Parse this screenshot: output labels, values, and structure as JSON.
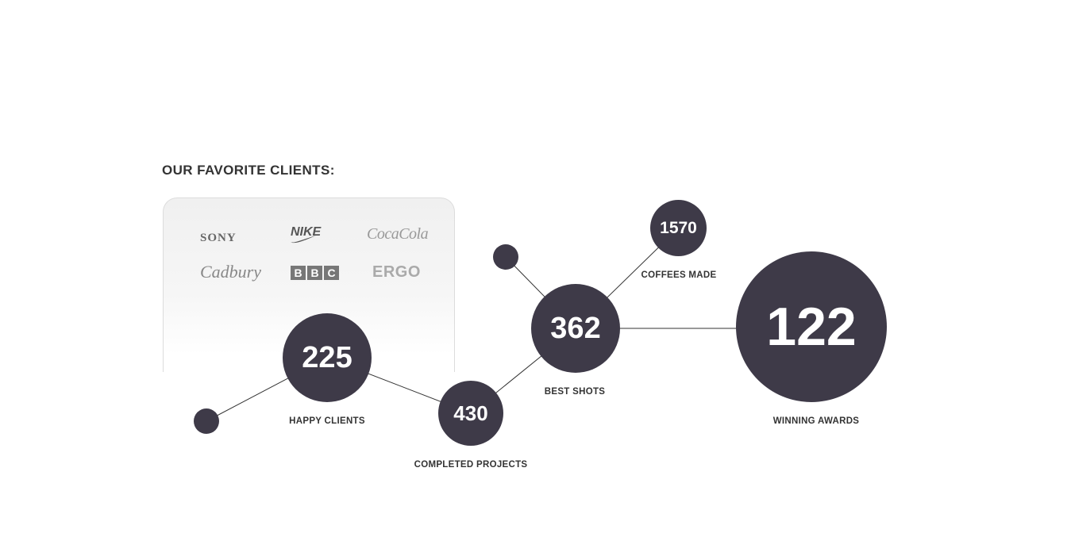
{
  "section_title": "OUR FAVORITE CLIENTS:",
  "clients": {
    "sony": "SONY",
    "nike": "NIKE",
    "cocacola": "CocaCola",
    "cadbury": "Cadbury",
    "bbc": [
      "B",
      "B",
      "C"
    ],
    "ergo": "ERGO"
  },
  "stats": {
    "happy_clients": {
      "value": "225",
      "label": "HAPPY CLIENTS"
    },
    "completed_projects": {
      "value": "430",
      "label": "COMPLETED PROJECTS"
    },
    "best_shots": {
      "value": "362",
      "label": "BEST SHOTS"
    },
    "coffees_made": {
      "value": "1570",
      "label": "COFFEES MADE"
    },
    "winning_awards": {
      "value": "122",
      "label": "WINNING AWARDS"
    }
  },
  "colors": {
    "node": "#3e3a48",
    "line": "#333333"
  }
}
